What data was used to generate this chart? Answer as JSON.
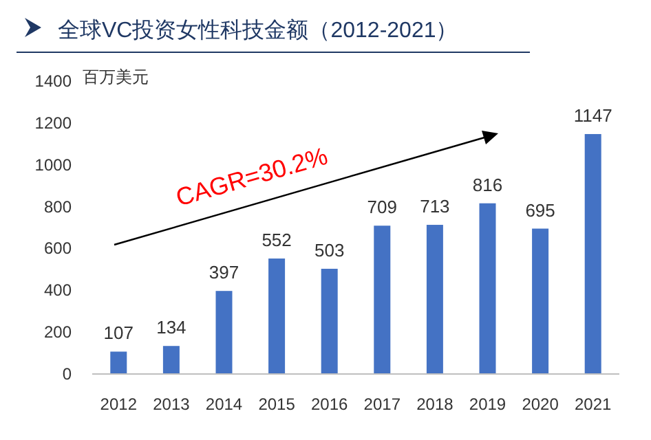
{
  "chart_data": {
    "type": "bar",
    "title": "全球VC投资女性科技金额（2012-2021）",
    "ylabel": "百万美元",
    "categories": [
      "2012",
      "2013",
      "2014",
      "2015",
      "2016",
      "2017",
      "2018",
      "2019",
      "2020",
      "2021"
    ],
    "values": [
      107,
      134,
      397,
      552,
      503,
      709,
      713,
      816,
      695,
      1147
    ],
    "color": "#4472c4",
    "ylim": [
      0,
      1400
    ],
    "yticks": [
      0,
      200,
      400,
      600,
      800,
      1000,
      1200,
      1400
    ],
    "data_labels": true,
    "grid": false,
    "annotations": [
      "CAGR=30.2%"
    ]
  }
}
